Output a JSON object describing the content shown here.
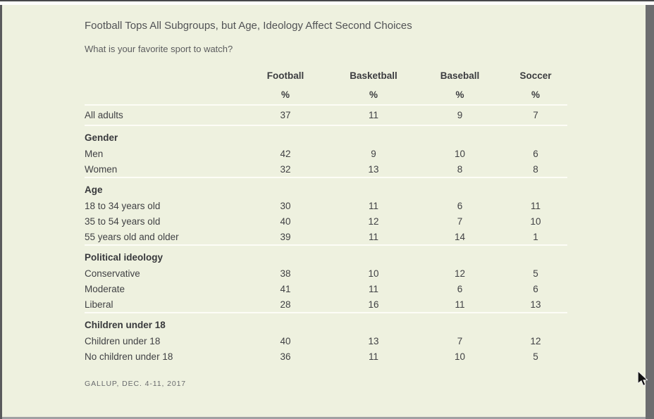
{
  "page": {
    "title": "Football Tops All Subgroups, but Age, Ideology Affect Second Choices",
    "subtitle": "What is your favorite sport to watch?",
    "source": "GALLUP, DEC. 4-11, 2017"
  },
  "chart_data": {
    "type": "table",
    "title": "Football Tops All Subgroups, but Age, Ideology Affect Second Choices",
    "question": "What is your favorite sport to watch?",
    "columns": [
      "Football",
      "Basketball",
      "Baseball",
      "Soccer"
    ],
    "unit_row": [
      "%",
      "%",
      "%",
      "%"
    ],
    "sections": [
      {
        "header": null,
        "rows": [
          {
            "label": "All adults",
            "values": [
              37,
              11,
              9,
              7
            ]
          }
        ]
      },
      {
        "header": "Gender",
        "rows": [
          {
            "label": "Men",
            "values": [
              42,
              9,
              10,
              6
            ]
          },
          {
            "label": "Women",
            "values": [
              32,
              13,
              8,
              8
            ]
          }
        ]
      },
      {
        "header": "Age",
        "rows": [
          {
            "label": "18 to 34 years old",
            "values": [
              30,
              11,
              6,
              11
            ]
          },
          {
            "label": "35 to 54 years old",
            "values": [
              40,
              12,
              7,
              10
            ]
          },
          {
            "label": "55 years old and older",
            "values": [
              39,
              11,
              14,
              1
            ]
          }
        ]
      },
      {
        "header": "Political ideology",
        "rows": [
          {
            "label": "Conservative",
            "values": [
              38,
              10,
              12,
              5
            ]
          },
          {
            "label": "Moderate",
            "values": [
              41,
              11,
              6,
              6
            ]
          },
          {
            "label": "Liberal",
            "values": [
              28,
              16,
              11,
              13
            ]
          }
        ]
      },
      {
        "header": "Children under 18",
        "rows": [
          {
            "label": "Children under 18",
            "values": [
              40,
              13,
              7,
              12
            ]
          },
          {
            "label": "No children under 18",
            "values": [
              36,
              11,
              10,
              5
            ]
          }
        ]
      }
    ],
    "source": "GALLUP, DEC. 4-11, 2017",
    "layout": {
      "grid": "off",
      "separators": "white-lines-between-sections"
    }
  },
  "colors": {
    "page_background": "#eef1df",
    "separator_line": "#fdfdf6",
    "text_primary": "#404144",
    "text_title": "#515255",
    "scrollbar_track": "#6c6d6f",
    "window_border": "#47484a"
  }
}
